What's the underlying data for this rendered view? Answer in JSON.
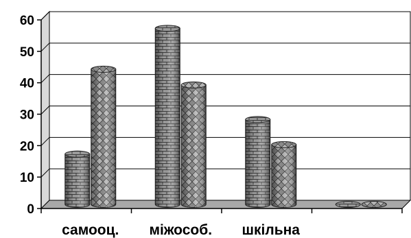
{
  "chart_data": {
    "type": "bar",
    "style": "3d-cylinder",
    "categories": [
      "самооц.",
      "міжособ.",
      "шкільна",
      ""
    ],
    "series": [
      {
        "values": [
          16,
          56,
          27,
          0
        ],
        "pattern": "brick"
      },
      {
        "values": [
          43,
          38,
          19,
          0
        ],
        "pattern": "diamond"
      }
    ],
    "ylim": [
      0,
      60
    ],
    "yticks": [
      0,
      10,
      20,
      30,
      40,
      50,
      60
    ],
    "grid": true,
    "colors": {
      "bar_fill": "#8c8c8c",
      "pattern_line": "#3a3a3a",
      "floor": "#a8a8a8",
      "wall": "#ffffff"
    }
  }
}
